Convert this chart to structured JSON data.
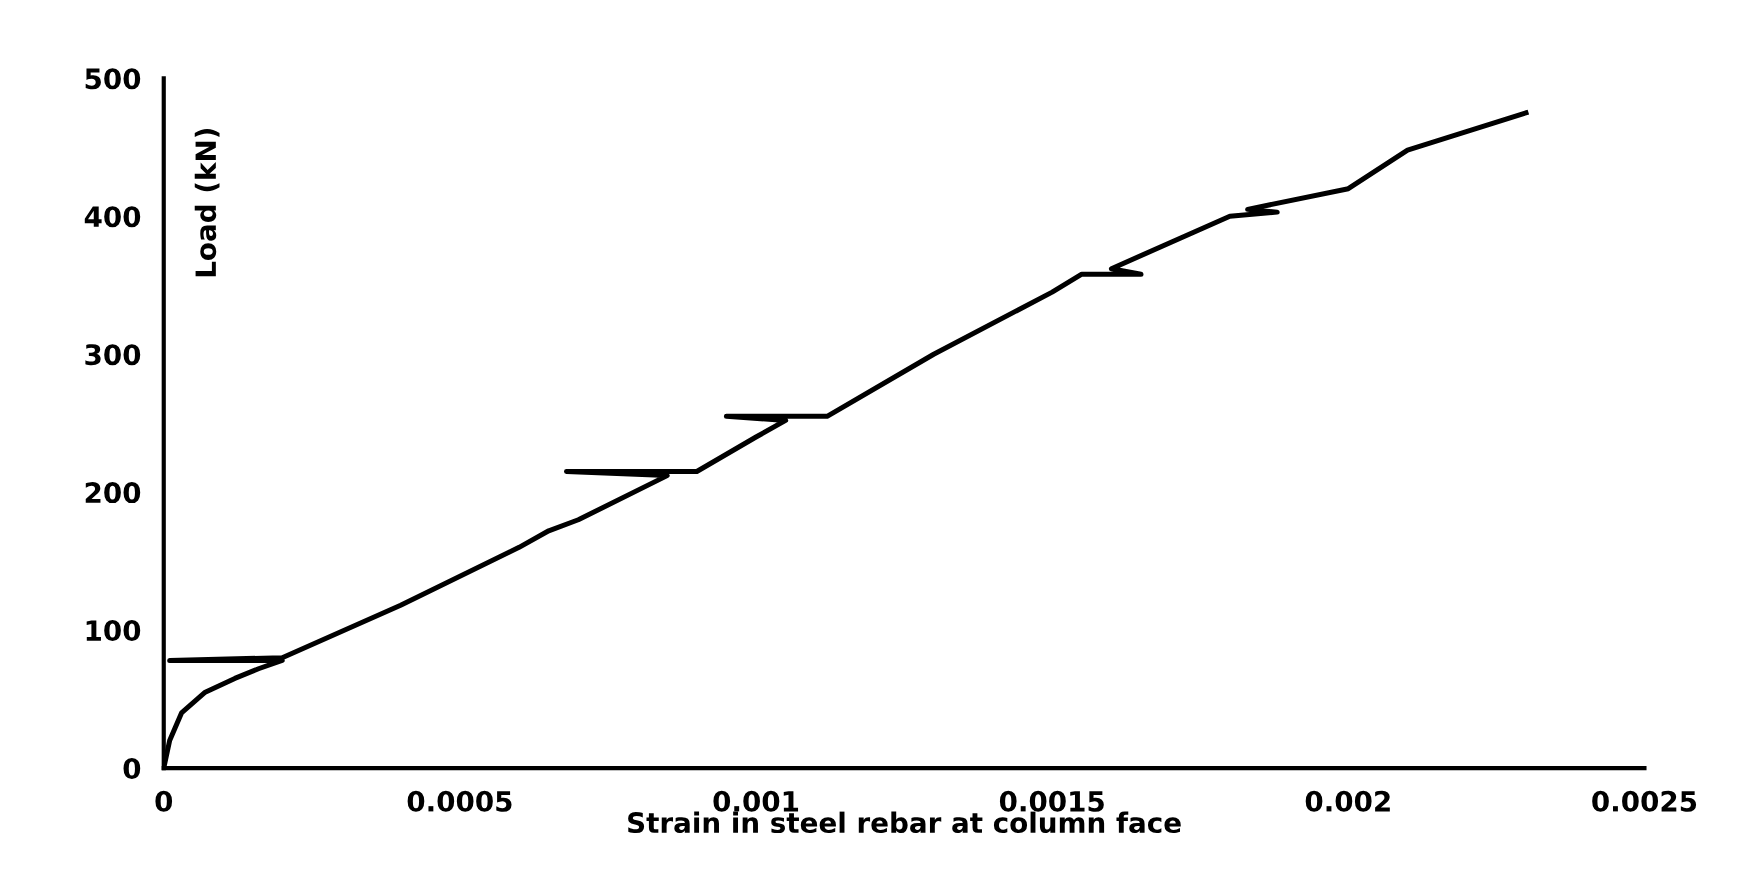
{
  "chart_data": {
    "type": "line",
    "xlabel": "Strain in steel rebar at column face",
    "ylabel": "Load (kN)",
    "x": [
      0,
      1e-05,
      3e-05,
      7e-05,
      0.00012,
      0.00016,
      0.0002,
      1e-05,
      0.0002,
      0.0004,
      0.0006,
      0.00065,
      0.0007,
      0.00085,
      0.00068,
      0.0009,
      0.001,
      0.00105,
      0.00095,
      0.00112,
      0.0013,
      0.0015,
      0.00155,
      0.00165,
      0.0016,
      0.0018,
      0.00188,
      0.00183,
      0.002,
      0.0021,
      0.0023
    ],
    "series": [
      {
        "color": "#000000",
        "values": [
          0,
          20,
          40,
          55,
          65,
          72,
          78,
          78,
          80,
          118,
          160,
          172,
          180,
          212,
          215,
          215,
          240,
          252,
          255,
          255,
          300,
          345,
          358,
          358,
          362,
          400,
          403,
          405,
          420,
          448,
          475
        ]
      }
    ],
    "xlim": [
      0,
      0.0025
    ],
    "ylim": [
      0,
      500
    ],
    "xticks": [
      0,
      0.0005,
      0.001,
      0.0015,
      0.002,
      0.0025
    ],
    "yticks": [
      0,
      100,
      200,
      300,
      400,
      500
    ],
    "grid": false,
    "legend": false,
    "marker": "none",
    "line_style": "solid"
  }
}
